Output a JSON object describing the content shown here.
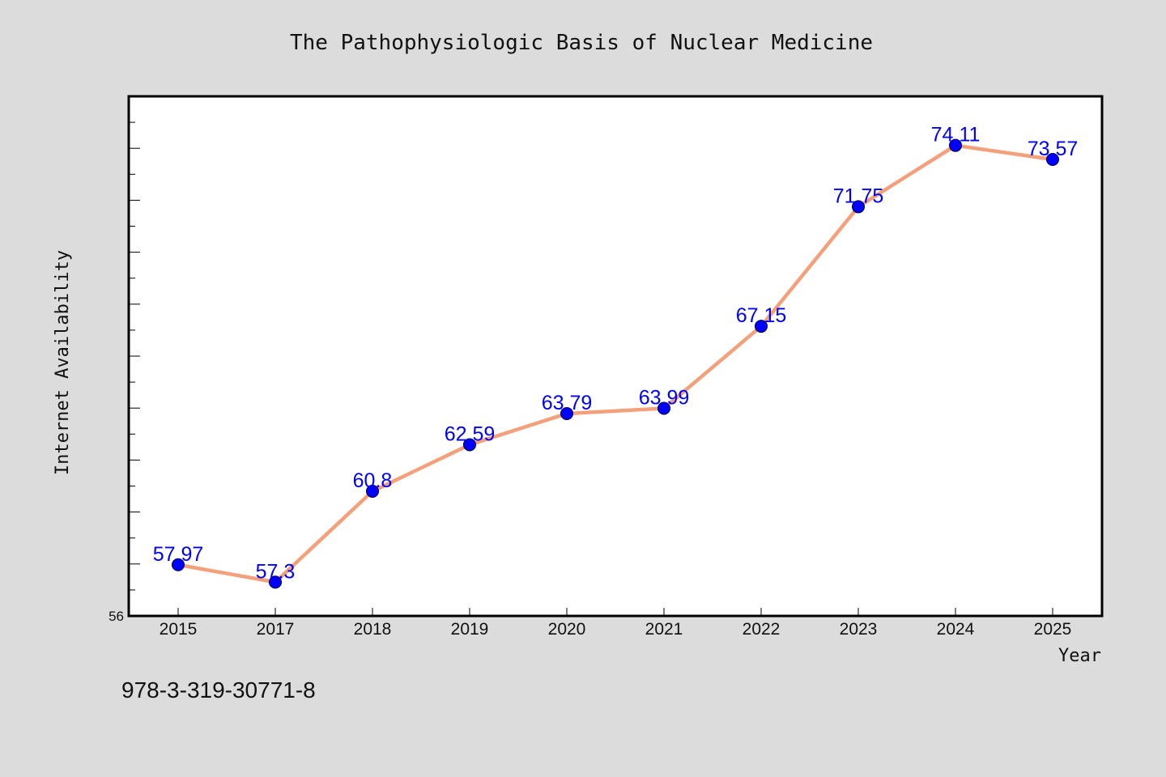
{
  "chart_data": {
    "type": "line",
    "title": "The Pathophysiologic Basis of Nuclear Medicine",
    "xlabel": "Year",
    "ylabel": "Internet Availability",
    "categories": [
      "2015",
      "2017",
      "2018",
      "2019",
      "2020",
      "2021",
      "2022",
      "2023",
      "2024",
      "2025"
    ],
    "series": [
      {
        "values": [
          57.97,
          57.3,
          60.8,
          62.59,
          63.79,
          63.99,
          67.15,
          71.75,
          74.11,
          73.57
        ],
        "labels": [
          "57.97",
          "57.3",
          "60.8",
          "62.59",
          "63.79",
          "63.99",
          "67.15",
          "71.75",
          "74.11",
          "73.57"
        ]
      }
    ],
    "ylim": [
      56,
      76
    ],
    "y_tick_labels": [
      "56"
    ],
    "grid": false,
    "colors": {
      "line": "#f4a07a",
      "marker": "#0000ff",
      "label": "#0000ff",
      "plot_background": "#ffffff",
      "page_background": "#dcdcdc"
    }
  },
  "footer": {
    "isbn": "978-3-319-30771-8"
  }
}
